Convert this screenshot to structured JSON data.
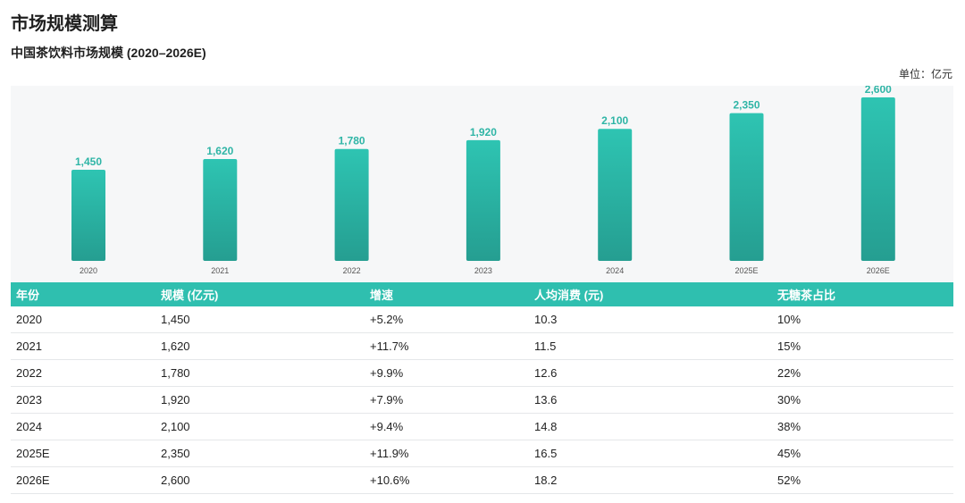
{
  "page": {
    "title": "市场规模测算"
  },
  "chart_data": {
    "type": "bar",
    "title": "中国茶饮料市场规模 (2020–2026E)",
    "unit_label": "单位：亿元",
    "categories": [
      "2020",
      "2021",
      "2022",
      "2023",
      "2024",
      "2025E",
      "2026E"
    ],
    "values": [
      1450,
      1620,
      1780,
      1920,
      2100,
      2350,
      2600
    ],
    "value_labels": [
      "1,450",
      "1,620",
      "1,780",
      "1,920",
      "2,100",
      "2,350",
      "2,600"
    ],
    "ylim": [
      0,
      2700
    ],
    "grid": false,
    "colors": {
      "bar_top": "#2ec4b2",
      "bar_bottom": "#259e91",
      "label": "#2fb5a6",
      "tick": "#555555"
    }
  },
  "table": {
    "headers": [
      "年份",
      "规模 (亿元)",
      "增速",
      "人均消费 (元)",
      "无糖茶占比"
    ],
    "rows": [
      [
        "2020",
        "1,450",
        "+5.2%",
        "10.3",
        "10%"
      ],
      [
        "2021",
        "1,620",
        "+11.7%",
        "11.5",
        "15%"
      ],
      [
        "2022",
        "1,780",
        "+9.9%",
        "12.6",
        "22%"
      ],
      [
        "2023",
        "1,920",
        "+7.9%",
        "13.6",
        "30%"
      ],
      [
        "2024",
        "2,100",
        "+9.4%",
        "14.8",
        "38%"
      ],
      [
        "2025E",
        "2,350",
        "+11.9%",
        "16.5",
        "45%"
      ],
      [
        "2026E",
        "2,600",
        "+10.6%",
        "18.2",
        "52%"
      ]
    ],
    "header_color": "#2fbfaf"
  }
}
